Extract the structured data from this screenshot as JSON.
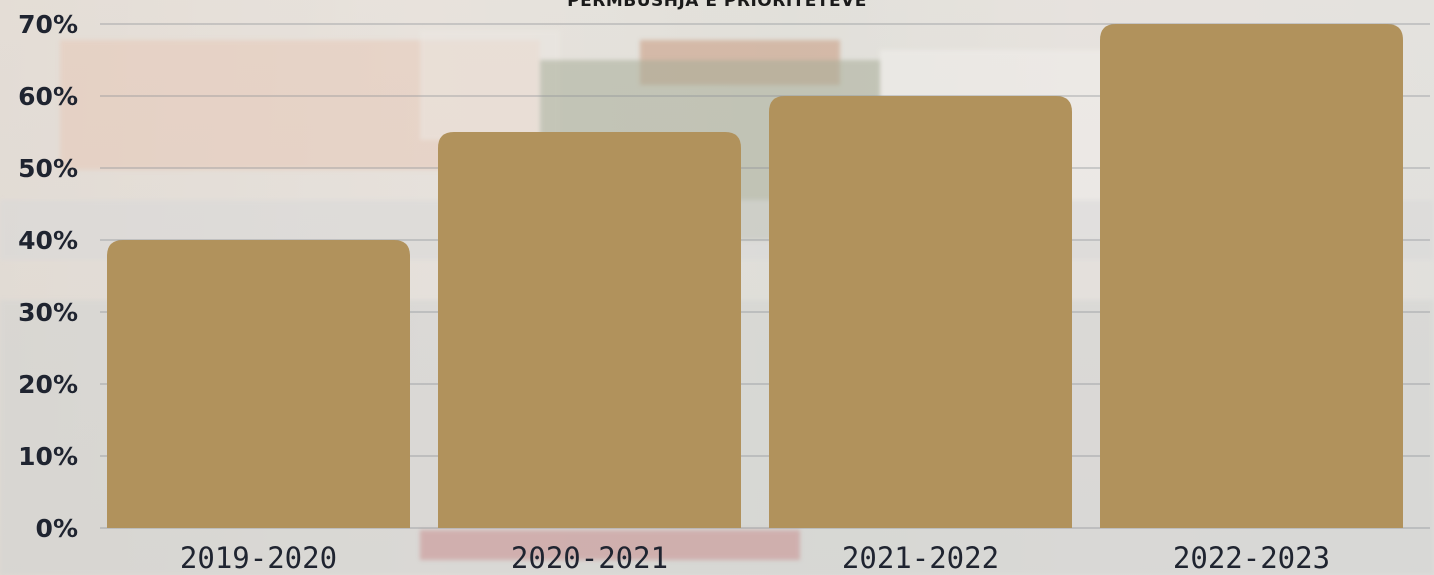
{
  "chart_data": {
    "type": "bar",
    "title": "PËRMBUSHJA E PRIORITETEVE",
    "xlabel": "",
    "ylabel": "",
    "categories": [
      "2019-2020",
      "2020-2021",
      "2021-2022",
      "2022-2023"
    ],
    "values": [
      40,
      55,
      60,
      70
    ],
    "ylim": [
      0,
      70
    ],
    "yticks": [
      0,
      10,
      20,
      30,
      40,
      50,
      60,
      70
    ],
    "ytick_labels": [
      "0%",
      "10%",
      "20%",
      "30%",
      "40%",
      "50%",
      "60%",
      "70%"
    ],
    "grid": true,
    "bar_color": "#b1925c",
    "grid_color": "#8a8f94"
  }
}
